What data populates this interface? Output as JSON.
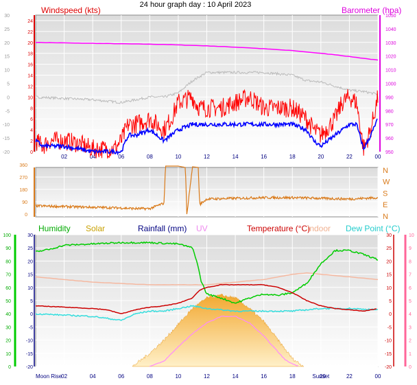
{
  "title": "24 hour graph day : 10 April 2023",
  "colors": {
    "wind_gust": "#ff0000",
    "wind_avg": "#0000ff",
    "temp_gray": "#bbbbbb",
    "barometer": "#ff00ff",
    "direction": "#d97a1a",
    "humidity": "#00cc00",
    "solar": "#f5a623",
    "rainfall": "#000080",
    "uv": "#ff88ff",
    "temperature": "#cc0000",
    "indoor": "#f5b8a0",
    "dewpoint": "#33dddd"
  },
  "chart_data": [
    {
      "type": "line",
      "x_ticks": [
        "02",
        "04",
        "06",
        "08",
        "10",
        "12",
        "14",
        "16",
        "18",
        "20",
        "22",
        "00"
      ],
      "left_label": "Windspeed (kts)",
      "right_label": "Barometer (hpa)",
      "left_ticks": [
        "24",
        "22",
        "20",
        "18",
        "16",
        "14",
        "12",
        "10",
        "8",
        "6",
        "4",
        "2",
        "0"
      ],
      "far_left_ticks": [
        "30",
        "25",
        "20",
        "15",
        "10",
        "5",
        "0",
        "-5",
        "-10",
        "-15",
        "-20"
      ],
      "right_ticks": [
        "1050",
        "1040",
        "1030",
        "1020",
        "1010",
        "1000",
        "990",
        "980",
        "970",
        "960",
        "950"
      ],
      "series": [
        {
          "color_key": "barometer",
          "x": [
            0,
            3,
            6,
            9,
            12,
            15,
            18,
            21,
            24
          ],
          "values": [
            1030,
            1029.5,
            1029,
            1028.5,
            1027.5,
            1026,
            1024,
            1021,
            1017
          ]
        },
        {
          "color_key": "temp_gray",
          "x": [
            0,
            2,
            4,
            6,
            7,
            8,
            9,
            10,
            11,
            12,
            14,
            16,
            18,
            19,
            20,
            21,
            22,
            23,
            24
          ],
          "values": [
            0,
            -0.5,
            -1,
            -2,
            -1,
            0,
            0,
            1.5,
            6,
            9,
            9,
            9,
            8,
            6,
            5.5,
            4,
            2.5,
            2,
            1
          ]
        },
        {
          "color_key": "wind_gust",
          "x": [
            0,
            0.5,
            1,
            1.5,
            2,
            3,
            4,
            5,
            5.5,
            6,
            6.5,
            7,
            8,
            9,
            9.5,
            10,
            11,
            11.2,
            11.5,
            12,
            13,
            14,
            15,
            16,
            17,
            18,
            19,
            19.5,
            20,
            21,
            21.5,
            22,
            22.5,
            23,
            23.5,
            24
          ],
          "values": [
            2,
            1,
            2,
            2,
            2,
            1.5,
            0.5,
            0.5,
            0.5,
            2,
            5,
            5,
            6,
            4,
            6,
            9,
            10,
            9,
            8,
            8,
            8,
            9,
            10,
            8,
            8,
            8,
            6,
            4,
            3,
            6,
            9,
            10,
            9,
            0.5,
            4,
            10
          ]
        },
        {
          "color_key": "wind_avg",
          "x": [
            0,
            0.5,
            1,
            2,
            3,
            4,
            5,
            6,
            6.5,
            7,
            8,
            9,
            9.5,
            10,
            11,
            12,
            13,
            14,
            15,
            16,
            17,
            18,
            19,
            19.5,
            20,
            21,
            21.5,
            22,
            22.5,
            23,
            23.5,
            24
          ],
          "values": [
            2,
            1,
            1,
            1,
            0.5,
            0,
            0,
            0,
            3,
            3,
            4,
            2,
            3,
            4,
            5,
            5,
            5,
            5,
            5,
            5,
            5,
            5,
            4,
            2,
            1,
            3,
            4,
            5,
            5,
            0.5,
            3,
            6
          ]
        }
      ]
    },
    {
      "type": "line",
      "left_ticks": [
        "360",
        "270",
        "180",
        "90",
        "0"
      ],
      "right_ticks": [
        "N",
        "W",
        "S",
        "E",
        "N"
      ],
      "series": [
        {
          "color_key": "direction",
          "x": [
            0,
            2,
            4,
            6,
            7,
            8,
            8.5,
            9,
            9.1,
            10,
            10.5,
            10.6,
            11,
            11.4,
            11.5,
            12,
            14,
            16,
            18,
            20,
            22,
            24
          ],
          "values": [
            60,
            55,
            50,
            45,
            40,
            40,
            60,
            80,
            350,
            350,
            340,
            0,
            345,
            340,
            70,
            110,
            115,
            120,
            120,
            115,
            110,
            120
          ]
        }
      ]
    },
    {
      "type": "line",
      "legend": [
        "Humidity",
        "Solar",
        "Rainfall (mm)",
        "UV",
        "Temperature (°C)",
        "Indoor",
        "Dew Point (°C)"
      ],
      "x_ticks": [
        "02",
        "04",
        "06",
        "08",
        "10",
        "12",
        "14",
        "16",
        "18",
        "Sunset",
        "22",
        "00"
      ],
      "bottom_left_label": "Moon Rise",
      "bottom_moon_set": "29",
      "humidity_ticks": [
        "100",
        "90",
        "80",
        "70",
        "60",
        "50",
        "40",
        "30",
        "20",
        "10",
        "0"
      ],
      "rain_ticks": [
        "30",
        "25",
        "20",
        "15",
        "10",
        "5",
        "0"
      ],
      "temp_ticks": [
        "30",
        "25",
        "20",
        "15",
        "10",
        "5",
        "0",
        "-5",
        "-10",
        "-15",
        "-20"
      ],
      "uv_ticks": [
        "10",
        "9",
        "8",
        "7",
        "6",
        "5",
        "4",
        "3",
        "2",
        "1",
        "0"
      ],
      "series": [
        {
          "color_key": "humidity",
          "x": [
            0,
            1,
            2,
            4,
            6,
            8,
            10,
            11,
            11.3,
            11.6,
            12,
            13,
            14,
            15,
            16,
            17,
            18,
            19,
            20,
            21,
            22,
            23,
            24
          ],
          "values": [
            87,
            89,
            92,
            93,
            94,
            94,
            93,
            90,
            80,
            65,
            55,
            52,
            48,
            52,
            55,
            54,
            56,
            63,
            78,
            88,
            88,
            85,
            81
          ]
        },
        {
          "color_key": "temperature",
          "x": [
            0,
            2,
            4,
            5,
            6,
            7,
            8,
            9,
            10,
            11,
            11.5,
            12,
            13,
            14,
            15,
            16,
            17,
            18,
            19,
            20,
            21,
            22,
            23,
            24
          ],
          "values": [
            3,
            2.5,
            2,
            1.5,
            0,
            1.5,
            2.5,
            3,
            4,
            6,
            9,
            10,
            11,
            11,
            11,
            11,
            10,
            8,
            5,
            3,
            2,
            1.5,
            1,
            2
          ]
        },
        {
          "color_key": "indoor",
          "x": [
            0,
            2,
            4,
            6,
            8,
            10,
            12,
            14,
            16,
            18,
            19,
            20,
            22,
            24
          ],
          "values": [
            14,
            13,
            12,
            11.5,
            11,
            11,
            11,
            12,
            13,
            15,
            15.5,
            15,
            14,
            13
          ]
        },
        {
          "color_key": "dewpoint",
          "x": [
            0,
            2,
            4,
            6,
            7,
            8,
            9,
            10,
            11,
            12,
            14,
            16,
            18,
            20,
            22,
            24
          ],
          "values": [
            0,
            -0.5,
            -1,
            -2.5,
            0,
            1,
            1,
            2,
            3,
            2,
            1,
            1,
            1,
            2,
            2,
            1.5
          ]
        },
        {
          "color_key": "uv",
          "x": [
            8,
            9,
            10,
            11,
            12,
            13,
            14,
            15,
            16,
            17,
            17.5,
            18,
            18.5
          ],
          "values": [
            0,
            0.4,
            1.5,
            2.5,
            3.3,
            3.8,
            3.8,
            3.3,
            2.3,
            1.1,
            0.5,
            0.2,
            0
          ]
        },
        {
          "color_key": "solar",
          "x": [
            6.8,
            8,
            9,
            10,
            11,
            12,
            13,
            14,
            15,
            16,
            17,
            18,
            18.8
          ],
          "values": [
            0,
            5,
            10,
            16,
            22,
            26,
            27,
            26,
            22,
            17,
            10,
            3,
            0
          ]
        }
      ]
    }
  ]
}
